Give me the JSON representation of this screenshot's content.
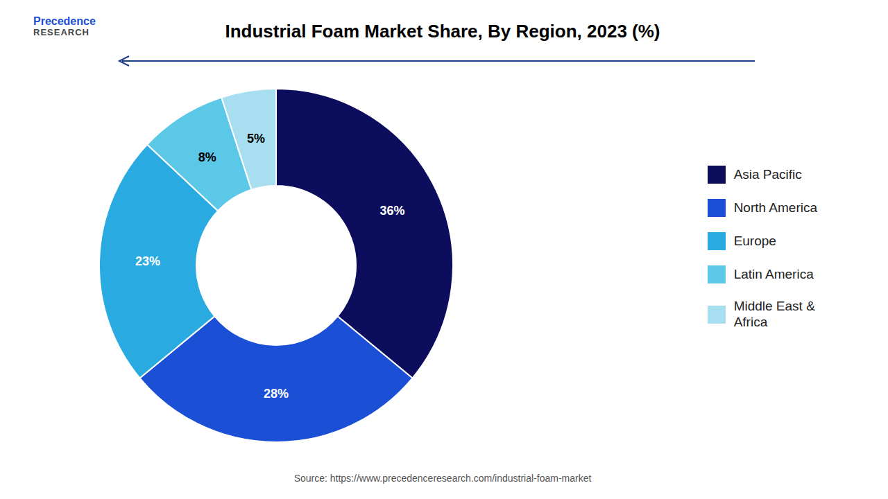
{
  "chart_data": {
    "type": "donut",
    "title": "Industrial Foam Market Share, By Region, 2023 (%)",
    "categories": [
      "Asia Pacific",
      "North America",
      "Europe",
      "Latin America",
      "Middle East &\nAfrica"
    ],
    "values": [
      36,
      28,
      23,
      8,
      5
    ],
    "value_labels": [
      "36%",
      "28%",
      "23%",
      "8%",
      "5%"
    ],
    "colors": [
      "#0d0d5e",
      "#1a4fd6",
      "#29abe2",
      "#5bc8e8",
      "#a8dff0"
    ],
    "data_labels": true,
    "legend": "right",
    "annotations": [
      "Precedence",
      "RESEARCH",
      "Source: https://www.precedenceresearch.com/industrial-foam-market"
    ]
  }
}
